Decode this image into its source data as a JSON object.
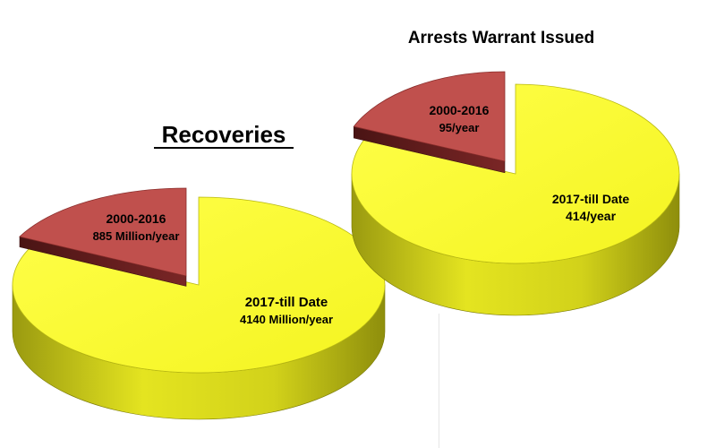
{
  "chart_data": [
    {
      "type": "pie",
      "title": "Recoveries",
      "slices": [
        {
          "label": "2000-2016",
          "value_text": "885 Million/year",
          "value": 885,
          "color": "#c0504d"
        },
        {
          "label": "2017-till Date",
          "value_text": "4140 Million/year",
          "value": 4140,
          "color": "#ffff33"
        }
      ],
      "exploded_slice": "2000-2016",
      "style": "3d"
    },
    {
      "type": "pie",
      "title": "Arrests Warrant Issued",
      "slices": [
        {
          "label": "2000-2016",
          "value_text": "95/year",
          "value": 95,
          "color": "#c0504d"
        },
        {
          "label": "2017-till Date",
          "value_text": "414/year",
          "value": 414,
          "color": "#ffff33"
        }
      ],
      "exploded_slice": "2000-2016",
      "style": "3d"
    }
  ]
}
